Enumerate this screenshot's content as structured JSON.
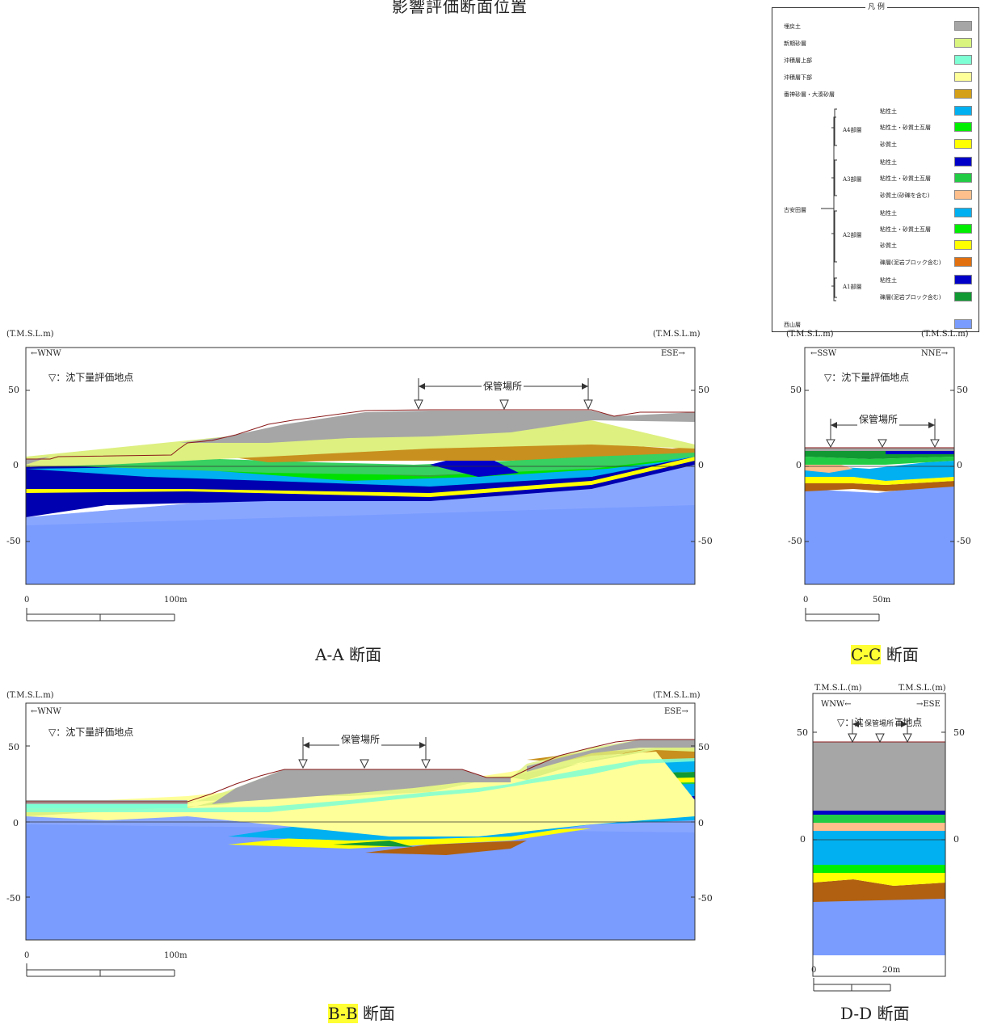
{
  "page_title": "影響評価断面位置",
  "legend": {
    "title": "凡 例",
    "items": [
      {
        "label": "埋戻土",
        "color": "#a6a6a6"
      },
      {
        "label": "新期砂層",
        "color": "#d9f57f"
      },
      {
        "label": "沖積層上部",
        "color": "#7fffd4"
      },
      {
        "label": "沖積層下部",
        "color": "#ffff99"
      },
      {
        "label": "番神砂層・大湊砂層",
        "color": "#d4a017"
      },
      {
        "label": "粘性土",
        "color": "#00b0f0"
      },
      {
        "label": "粘性土・砂質土互層",
        "color": "#00ee00"
      },
      {
        "label": "砂質土",
        "color": "#ffff00"
      },
      {
        "label": "粘性土",
        "color": "#0000c8"
      },
      {
        "label": "粘性土・砂質土互層",
        "color": "#22cc44"
      },
      {
        "label": "砂質土(砂礫を含む)",
        "color": "#ffbf8c"
      },
      {
        "label": "粘性土",
        "color": "#00b0f0"
      },
      {
        "label": "粘性土・砂質土互層",
        "color": "#00ee00"
      },
      {
        "label": "砂質土",
        "color": "#ffff00"
      },
      {
        "label": "礫層(泥岩ブロック含む)",
        "color": "#e07010"
      },
      {
        "label": "粘性土",
        "color": "#0000c8"
      },
      {
        "label": "礫層(泥岩ブロック含む)",
        "color": "#119933"
      },
      {
        "label": "西山層",
        "color": "#7a9cff"
      }
    ],
    "group_main": "古安田層",
    "groups": [
      "A4部層",
      "A3部層",
      "A2部層",
      "A1部層"
    ]
  },
  "sections": {
    "aa": {
      "caption": "A-A 断面",
      "left_dir": "←WNW",
      "right_dir": "ESE→",
      "axis_unit": "(T.M.S.L.m)",
      "note": "▽：沈下量評価地点",
      "storage": "保管場所",
      "ticks": [
        "50",
        "0",
        "-50"
      ],
      "scale_start": "0",
      "scale_end": "100m"
    },
    "bb": {
      "caption_hl": "B-B",
      "caption_rest": " 断面",
      "left_dir": "←WNW",
      "right_dir": "ESE→",
      "axis_unit": "(T.M.S.L.m)",
      "note": "▽：沈下量評価地点",
      "storage": "保管場所",
      "ticks": [
        "50",
        "0",
        "-50"
      ],
      "scale_start": "0",
      "scale_end": "100m"
    },
    "cc": {
      "caption_hl": "C-C",
      "caption_rest": " 断面",
      "left_dir": "←SSW",
      "right_dir": "NNE→",
      "axis_unit": "(T.M.S.L.m)",
      "note": "▽：沈下量評価地点",
      "storage": "保管場所",
      "ticks": [
        "50",
        "0",
        "-50"
      ],
      "scale_start": "0",
      "scale_end": "50m"
    },
    "dd": {
      "caption": "D-D 断面",
      "left_dir": "WNW←",
      "right_dir": "→ESE",
      "axis_unit": "T.M.S.L.(m)",
      "note": "▽：沈下量評価地点",
      "storage": "保管場所",
      "ticks": [
        "50",
        "0"
      ],
      "scale_start": "0",
      "scale_end": "20m"
    }
  }
}
